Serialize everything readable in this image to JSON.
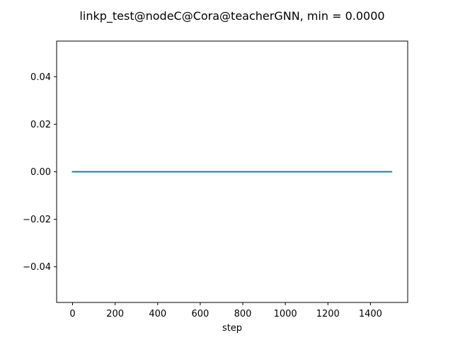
{
  "chart_data": {
    "type": "line",
    "title": "linkp_test@nodeC@Cora@teacherGNN, min = 0.0000",
    "xlabel": "step",
    "ylabel": "",
    "xlim": [
      -75,
      1575
    ],
    "ylim": [
      -0.055,
      0.055
    ],
    "xticks": [
      0,
      200,
      400,
      600,
      800,
      1000,
      1200,
      1400
    ],
    "xtick_labels": [
      "0",
      "200",
      "400",
      "600",
      "800",
      "1000",
      "1200",
      "1400"
    ],
    "yticks": [
      -0.04,
      -0.02,
      0.0,
      0.02,
      0.04
    ],
    "ytick_labels": [
      "−0.04",
      "−0.02",
      "0.00",
      "0.02",
      "0.04"
    ],
    "grid": false,
    "series": [
      {
        "color": "#1f77b4",
        "x": [
          0,
          1499
        ],
        "y": [
          0.0,
          0.0
        ]
      }
    ]
  }
}
